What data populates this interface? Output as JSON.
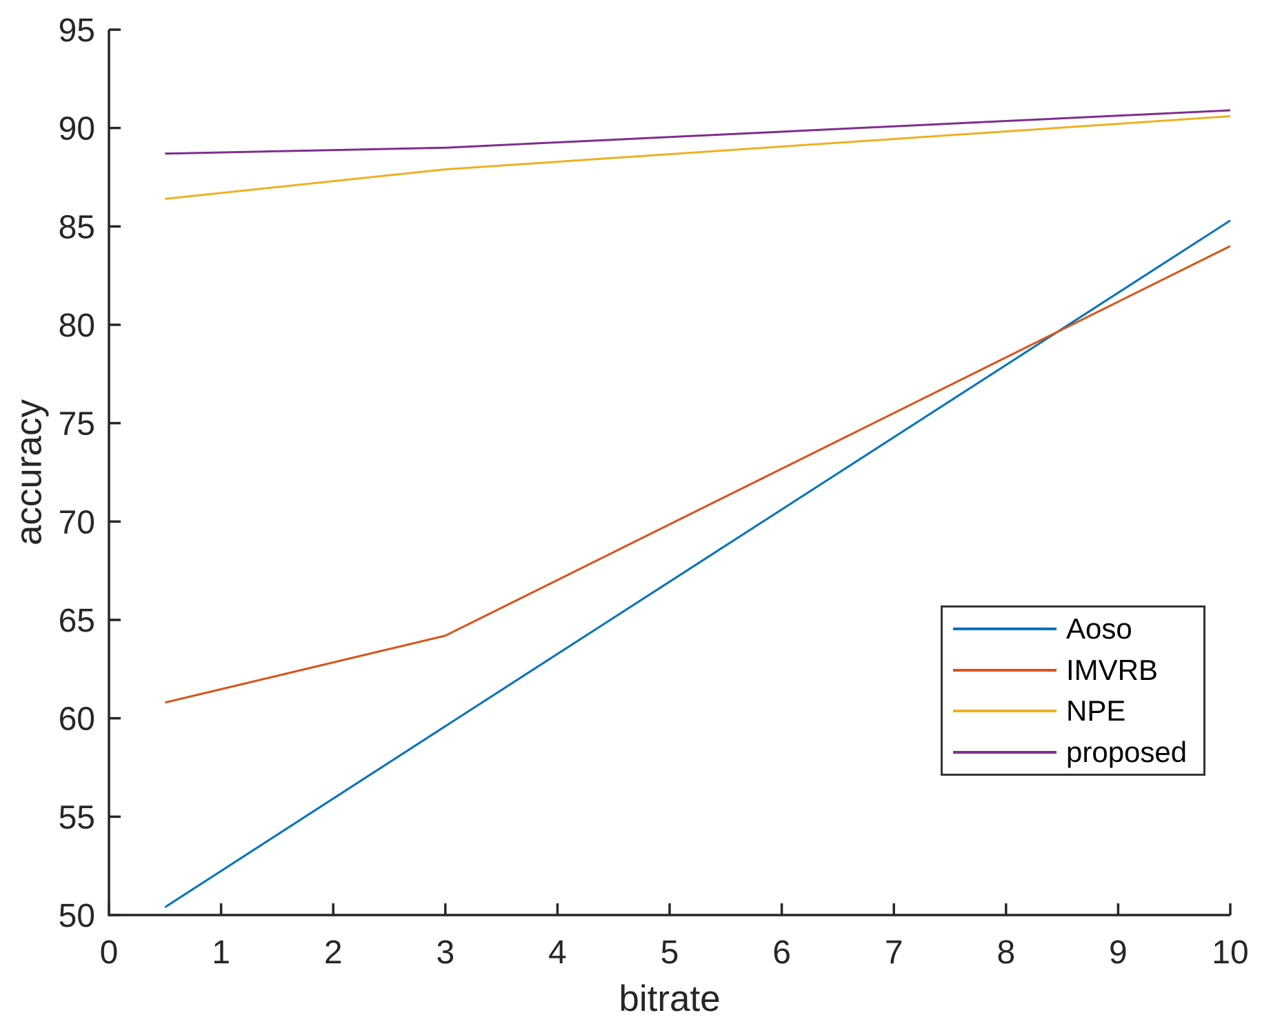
{
  "chart_data": {
    "type": "line",
    "x": [
      0.5,
      3,
      10
    ],
    "series": [
      {
        "name": "Aoso",
        "color": "#0072BD",
        "values": [
          50.4,
          59.6,
          85.3
        ]
      },
      {
        "name": "IMVRB",
        "color": "#D95319",
        "values": [
          60.8,
          64.2,
          84.0
        ]
      },
      {
        "name": "NPE",
        "color": "#EDB120",
        "values": [
          86.4,
          87.9,
          90.6
        ]
      },
      {
        "name": "proposed",
        "color": "#7E2F8E",
        "values": [
          88.7,
          89.0,
          90.9
        ]
      }
    ],
    "title": "",
    "xlabel": "bitrate",
    "ylabel": "accuracy",
    "xlim": [
      0,
      10
    ],
    "ylim": [
      50,
      95
    ],
    "xticks": [
      0,
      1,
      2,
      3,
      4,
      5,
      6,
      7,
      8,
      9,
      10
    ],
    "xtick_labels": [
      "0",
      "1",
      "2",
      "3",
      "4",
      "5",
      "6",
      "7",
      "8",
      "9",
      "10"
    ],
    "yticks": [
      50,
      55,
      60,
      65,
      70,
      75,
      80,
      85,
      90,
      95
    ],
    "ytick_labels": [
      "50",
      "55",
      "60",
      "65",
      "70",
      "75",
      "80",
      "85",
      "90",
      "95"
    ],
    "grid": false,
    "legend_position": "bottom-right",
    "legend_entries": [
      "Aoso",
      "IMVRB",
      "NPE",
      "proposed"
    ],
    "axis_color": "#262626",
    "tick_direction": "in"
  }
}
